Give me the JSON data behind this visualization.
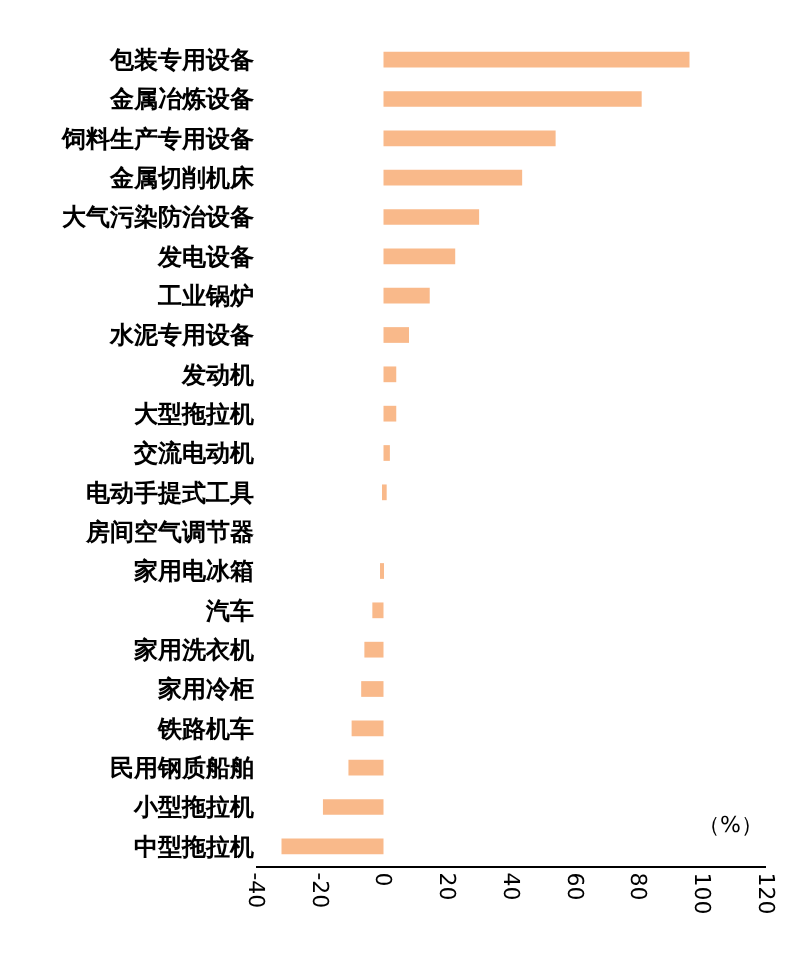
{
  "chart_data": {
    "type": "bar",
    "orientation": "horizontal",
    "xlabel": "（%）",
    "categories": [
      "包装专用设备",
      "金属冶炼设备",
      "饲料生产专用设备",
      "金属切削机床",
      "大气污染防治设备",
      "发电设备",
      "工业锅炉",
      "水泥专用设备",
      "发动机",
      "大型拖拉机",
      "交流电动机",
      "电动手提式工具",
      "房间空气调节器",
      "家用电冰箱",
      "汽车",
      "家用洗衣机",
      "家用冷柜",
      "铁路机车",
      "民用钢质船舶",
      "小型拖拉机",
      "中型拖拉机"
    ],
    "values": [
      96,
      81,
      54,
      43.5,
      30,
      22.5,
      14.5,
      8,
      4,
      4,
      2,
      1,
      0,
      -0.5,
      -3.5,
      -6,
      -7,
      -10,
      -11,
      -19,
      -32
    ],
    "color": "#f9b98a",
    "xlim": [
      -40,
      120
    ],
    "xticks": [
      -40,
      -20,
      0,
      20,
      40,
      60,
      80,
      100,
      120
    ],
    "grid": false,
    "legend": false
  }
}
